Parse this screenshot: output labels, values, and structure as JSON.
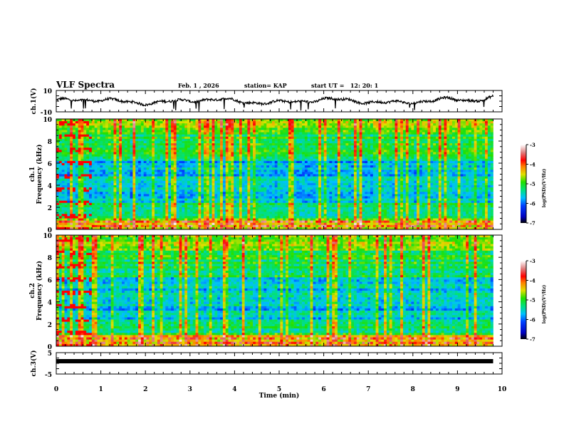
{
  "header": {
    "title": "VLF Spectra",
    "date": "Feb. 1 , 2026",
    "station": "station= KAP",
    "start": "start UT =   12: 20: 1"
  },
  "chart_data": [
    {
      "type": "line",
      "name": "ch1-waveform",
      "ylabel": "ch.1(V)",
      "ylim": [
        -10,
        10
      ],
      "yticks": [
        "10",
        "-10"
      ],
      "xlim": [
        0,
        10
      ],
      "data_end_min": 9.8,
      "description_values": "noisy waveform roughly between -5 and 7 V"
    },
    {
      "type": "heatmap",
      "name": "ch1-spectrogram",
      "ylabel_line1": "ch.1",
      "ylabel_line2": "Frequency (kHz)",
      "ylim": [
        0,
        10
      ],
      "yticks": [
        "0",
        "2",
        "4",
        "6",
        "8",
        "10"
      ],
      "xlim": [
        0,
        10
      ],
      "data_end_min": 9.8,
      "colorbar": {
        "label": "log(PSD)(V²/Hz)",
        "range": [
          -7,
          -3
        ],
        "ticks": [
          "-3",
          "-4",
          "-5",
          "-6",
          "-7"
        ]
      }
    },
    {
      "type": "heatmap",
      "name": "ch2-spectrogram",
      "ylabel_line1": "ch.2",
      "ylabel_line2": "Frequency (kHz)",
      "ylim": [
        0,
        10
      ],
      "yticks": [
        "0",
        "2",
        "4",
        "6",
        "8",
        "10"
      ],
      "xlim": [
        0,
        10
      ],
      "data_end_min": 9.8,
      "colorbar": {
        "label": "log(PSD)(V²/Hz)",
        "range": [
          -7,
          -3
        ],
        "ticks": [
          "-3",
          "-4",
          "-5",
          "-6",
          "-7"
        ]
      }
    },
    {
      "type": "line",
      "name": "ch3-waveform",
      "ylabel": "ch.3(V)",
      "ylim": [
        -5,
        5
      ],
      "yticks": [
        "5",
        "-5"
      ],
      "xlim": [
        0,
        10
      ],
      "data_end_min": 9.8,
      "level": 1.0
    }
  ],
  "xaxis": {
    "label": "Time (min)",
    "ticks": [
      "0",
      "1",
      "2",
      "3",
      "4",
      "5",
      "6",
      "7",
      "8",
      "9",
      "10"
    ]
  }
}
